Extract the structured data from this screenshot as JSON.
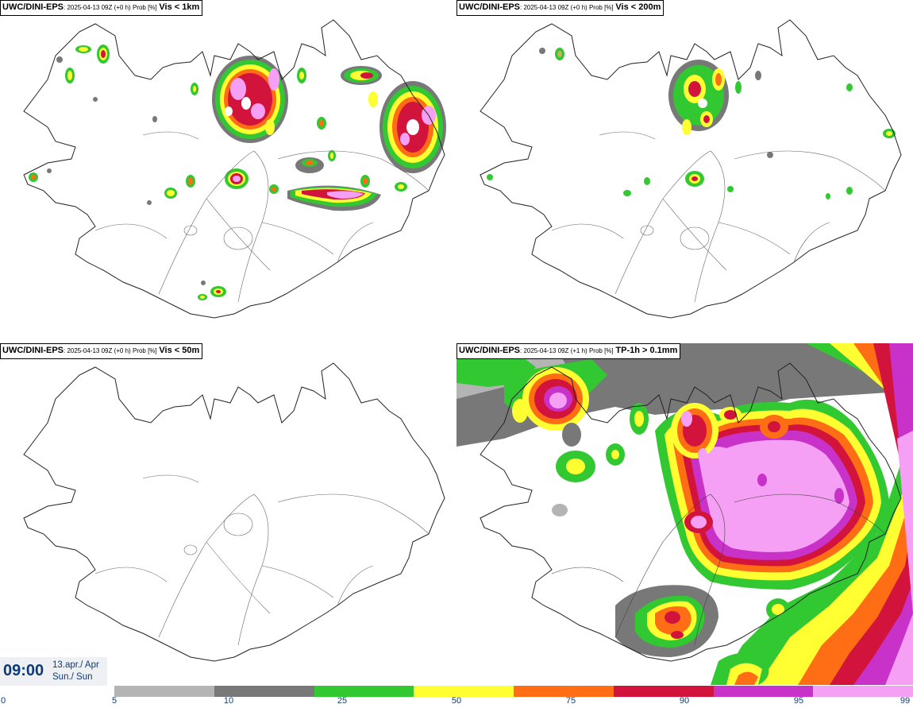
{
  "panels": [
    {
      "model": "UWC/DINI-EPS",
      "meta": ": 2025-04-13 09Z (+0 h) Prob [%]",
      "param": "Vis < 1km"
    },
    {
      "model": "UWC/DINI-EPS",
      "meta": ": 2025-04-13 09Z (+0 h) Prob [%]",
      "param": "Vis < 200m"
    },
    {
      "model": "UWC/DINI-EPS",
      "meta": ": 2025-04-13 09Z (+0 h) Prob [%]",
      "param": "Vis < 50m"
    },
    {
      "model": "UWC/DINI-EPS",
      "meta": ": 2025-04-13 09Z (+1 h) Prob [%]",
      "param": "TP-1h > 0.1mm"
    }
  ],
  "time": {
    "value": "09:00",
    "date_line1": "13.apr./ Apr",
    "date_line2": "Sun./ Sun"
  },
  "legend": {
    "ticks": [
      "0",
      "5",
      "10",
      "25",
      "50",
      "75",
      "90",
      "95",
      "99"
    ],
    "colors": [
      "#b4b4b4",
      "#787878",
      "#32c832",
      "#ffff32",
      "#ff6e14",
      "#d2143c",
      "#c832c8",
      "#f5a0f5"
    ]
  },
  "colors": {
    "coast": "#222222",
    "river": "#555555",
    "light_gray": "#b4b4b4",
    "dark_gray": "#787878",
    "green": "#32c832",
    "yellow": "#ffff32",
    "orange": "#ff6e14",
    "red": "#d2143c",
    "magenta": "#c832c8",
    "pink": "#f5a0f5"
  }
}
